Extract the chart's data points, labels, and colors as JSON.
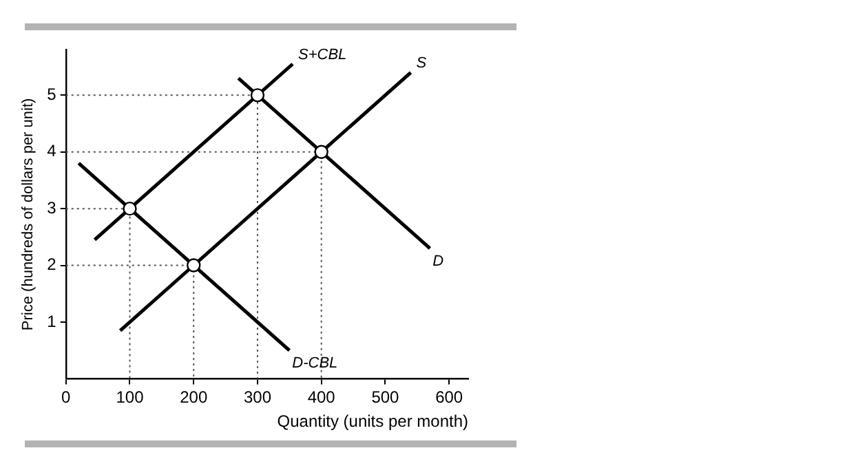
{
  "chart_data": {
    "type": "line",
    "xlabel": "Quantity (units per month)",
    "ylabel": "Price (hundreds of dollars per unit)",
    "xlim": [
      0,
      630
    ],
    "ylim": [
      0,
      5.8
    ],
    "xticks": [
      0,
      100,
      200,
      300,
      400,
      500,
      600
    ],
    "yticks": [
      1,
      2,
      3,
      4,
      5
    ],
    "grid": false,
    "legend": false,
    "series": [
      {
        "name": "S+CBL",
        "color": "#000000",
        "line_style": "solid",
        "marker": "none",
        "x": [
          45,
          355
        ],
        "values": [
          2.45,
          5.55
        ]
      },
      {
        "name": "S",
        "color": "#000000",
        "line_style": "solid",
        "marker": "none",
        "x": [
          85,
          540
        ],
        "values": [
          0.85,
          5.4
        ]
      },
      {
        "name": "D",
        "color": "#000000",
        "line_style": "solid",
        "marker": "none",
        "x": [
          270,
          570
        ],
        "values": [
          5.3,
          2.3
        ]
      },
      {
        "name": "D-CBL",
        "color": "#000000",
        "line_style": "solid",
        "marker": "none",
        "x": [
          20,
          350
        ],
        "values": [
          3.8,
          0.5
        ]
      },
      {
        "color": "#555555",
        "line_style": "dotted",
        "marker": "none",
        "x": [
          0,
          100,
          100
        ],
        "values": [
          3,
          3,
          0
        ]
      },
      {
        "color": "#555555",
        "line_style": "dotted",
        "marker": "none",
        "x": [
          0,
          200,
          200
        ],
        "values": [
          2,
          2,
          0
        ]
      },
      {
        "color": "#555555",
        "line_style": "dotted",
        "marker": "none",
        "x": [
          0,
          300,
          300
        ],
        "values": [
          5,
          5,
          0
        ]
      },
      {
        "color": "#555555",
        "line_style": "dotted",
        "marker": "none",
        "x": [
          0,
          400,
          400
        ],
        "values": [
          4,
          4,
          0
        ]
      },
      {
        "type": "scatter",
        "color": "#ffffff",
        "marker": "circle",
        "x": [
          100,
          200,
          300,
          400
        ],
        "values": [
          3,
          2,
          5,
          4
        ]
      }
    ]
  }
}
